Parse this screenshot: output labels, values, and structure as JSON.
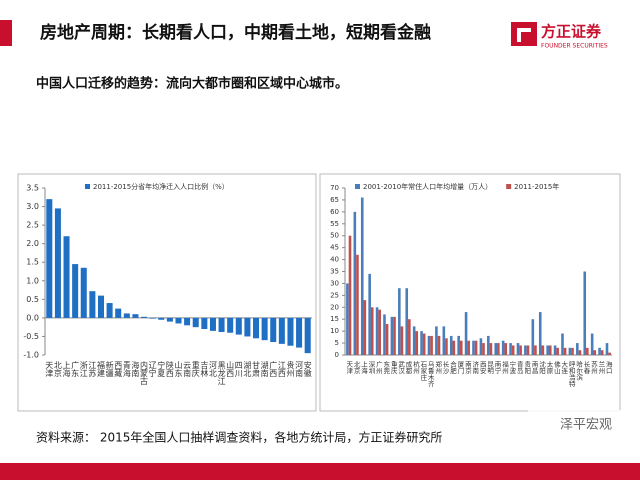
{
  "header": {
    "title": "房地产周期：长期看人口，中期看土地，短期看金融",
    "logo": "方正证券",
    "logo_en": "FOUNDER SECURITIES"
  },
  "subtitle": "中国人口迁移的趋势：流向大都市圈和区域中心城市。",
  "chart_data": [
    {
      "type": "bar",
      "categories": [
        "天津",
        "北京",
        "上海",
        "广东",
        "浙江",
        "江苏",
        "福建",
        "新疆",
        "西藏",
        "青海",
        "海南",
        "内蒙古",
        "辽宁",
        "宁夏",
        "陕西",
        "山东",
        "云南",
        "重庆",
        "吉林",
        "河北",
        "黑龙江",
        "山西",
        "四川",
        "湖北",
        "甘肃",
        "湖南",
        "广西",
        "江西",
        "贵州",
        "河南",
        "安徽"
      ],
      "series": [
        {
          "name": "2011-2015分省年均净迁入人口比例（%）",
          "color": "#1f6fc5",
          "values": [
            3.2,
            2.95,
            2.2,
            1.45,
            1.35,
            0.72,
            0.6,
            0.4,
            0.25,
            0.12,
            0.1,
            0.03,
            -0.02,
            -0.05,
            -0.1,
            -0.15,
            -0.2,
            -0.25,
            -0.3,
            -0.35,
            -0.38,
            -0.4,
            -0.45,
            -0.5,
            -0.55,
            -0.6,
            -0.65,
            -0.7,
            -0.75,
            -0.8,
            -0.95
          ]
        }
      ],
      "ylim": [
        -1,
        3.5
      ],
      "yticks": [
        {
          "value": -1,
          "label": "-1.0"
        },
        -0.5,
        {
          "value": 0,
          "label": "0.0"
        },
        0.5,
        {
          "value": 1,
          "label": "1.0"
        },
        1.5,
        {
          "value": 2,
          "label": "2.0"
        },
        2.5,
        {
          "value": 3,
          "label": "3.0"
        },
        3.5
      ]
    },
    {
      "type": "bar",
      "categories": [
        "天津",
        "北京",
        "上海",
        "深圳",
        "广州",
        "东莞",
        "重庆",
        "武汉",
        "成都",
        "杭州",
        "石家庄",
        "乌鲁木齐",
        "郑州",
        "长沙",
        "合肥",
        "厦门",
        "南京",
        "济南",
        "西安",
        "昆明",
        "南宁",
        "福州",
        "宁波",
        "青岛",
        "贵阳",
        "南昌",
        "沈阳",
        "太原",
        "佛山",
        "大连",
        "呼和浩特",
        "哈尔滨",
        "长春",
        "苏州",
        "兰州",
        "海口"
      ],
      "series": [
        {
          "name": "2001-2010年常住人口年均增量（万人）",
          "color": "#4a7ebb",
          "values": [
            30,
            60,
            66,
            34,
            20,
            17,
            16,
            28,
            28,
            12,
            10,
            8,
            12,
            12,
            8,
            8,
            18,
            6,
            7,
            8,
            5,
            6,
            5,
            5,
            4,
            15,
            18,
            4,
            4,
            9,
            3,
            5,
            35,
            9,
            3,
            5
          ]
        },
        {
          "name": "2011-2015年",
          "color": "#c0504d",
          "values": [
            50,
            42,
            23,
            20,
            19,
            13,
            16,
            12,
            15,
            10,
            9,
            8,
            8,
            7,
            6,
            6,
            6,
            6,
            5,
            5,
            5,
            5,
            4,
            4,
            4,
            4,
            4,
            4,
            3,
            3,
            3,
            2,
            3,
            2,
            2,
            1
          ]
        }
      ],
      "ylim": [
        0,
        70
      ],
      "yticks": [
        0,
        5,
        10,
        15,
        20,
        25,
        30,
        35,
        40,
        45,
        50,
        55,
        60,
        65,
        70
      ]
    }
  ],
  "source": "资料来源： 2015年全国人口抽样调查资料，各地方统计局，方正证券研究所",
  "watermark": "泽平宏观"
}
